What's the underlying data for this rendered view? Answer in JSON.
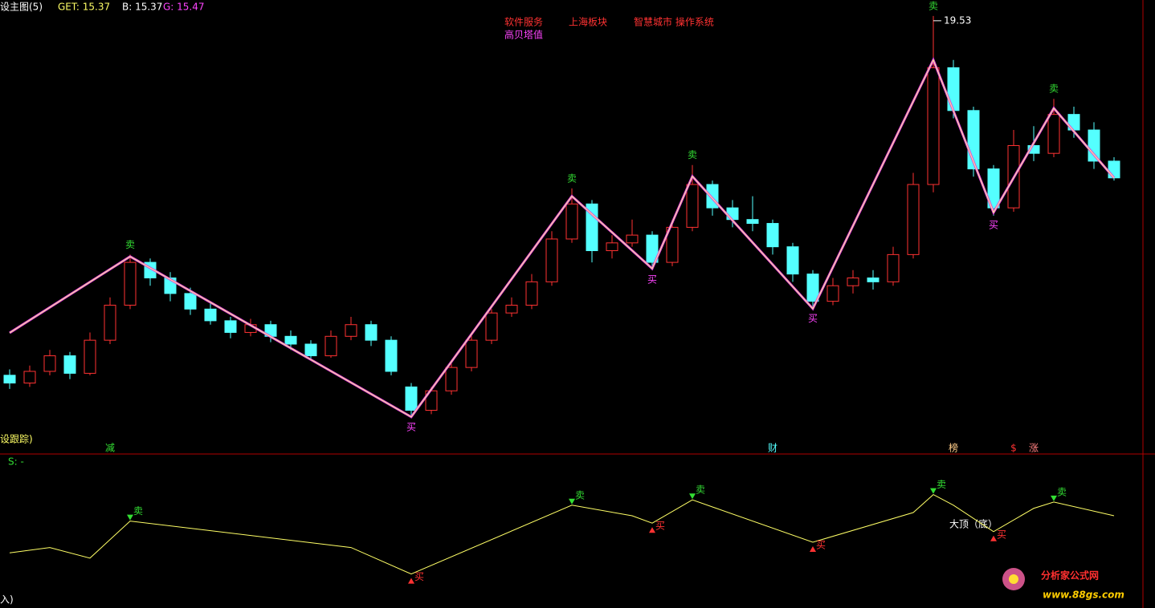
{
  "chart_data": {
    "type": "candlestick",
    "header": {
      "title": "设主图(5)",
      "get": "GET: 15.37",
      "b": "B: 15.37",
      "g": "G: 15.47"
    },
    "tags": [
      "软件服务",
      "上海板块",
      "智慧城市 操作系统",
      "高贝塔值"
    ],
    "peak_label": "19.53",
    "up_color": "#ff3232",
    "down_color": "#54ffff",
    "ylim": [
      8.71,
      19.63
    ],
    "ohlc": [
      [
        10.3,
        10.45,
        9.95,
        10.1
      ],
      [
        10.1,
        10.55,
        10.0,
        10.4
      ],
      [
        10.4,
        10.95,
        10.3,
        10.8
      ],
      [
        10.8,
        10.9,
        10.2,
        10.35
      ],
      [
        10.35,
        11.4,
        10.3,
        11.2
      ],
      [
        11.2,
        12.3,
        11.1,
        12.1
      ],
      [
        12.1,
        13.4,
        12.0,
        13.2
      ],
      [
        13.2,
        13.3,
        12.6,
        12.8
      ],
      [
        12.8,
        12.95,
        12.2,
        12.4
      ],
      [
        12.4,
        12.55,
        11.85,
        12.0
      ],
      [
        12.0,
        12.15,
        11.6,
        11.7
      ],
      [
        11.7,
        11.8,
        11.25,
        11.4
      ],
      [
        11.4,
        11.75,
        11.3,
        11.6
      ],
      [
        11.6,
        11.7,
        11.15,
        11.3
      ],
      [
        11.3,
        11.45,
        10.95,
        11.1
      ],
      [
        11.1,
        11.2,
        10.7,
        10.8
      ],
      [
        10.8,
        11.45,
        10.75,
        11.3
      ],
      [
        11.3,
        11.8,
        11.2,
        11.6
      ],
      [
        11.6,
        11.7,
        11.05,
        11.2
      ],
      [
        11.2,
        11.3,
        10.3,
        10.4
      ],
      [
        10.0,
        10.1,
        9.2,
        9.4
      ],
      [
        9.4,
        10.0,
        9.3,
        9.9
      ],
      [
        9.9,
        10.6,
        9.8,
        10.5
      ],
      [
        10.5,
        11.35,
        10.4,
        11.2
      ],
      [
        11.2,
        12.0,
        11.1,
        11.9
      ],
      [
        11.9,
        12.3,
        11.8,
        12.1
      ],
      [
        12.1,
        12.9,
        12.0,
        12.7
      ],
      [
        12.7,
        14.0,
        12.6,
        13.8
      ],
      [
        13.8,
        15.1,
        13.7,
        14.7
      ],
      [
        14.7,
        14.8,
        13.2,
        13.5
      ],
      [
        13.5,
        13.9,
        13.3,
        13.7
      ],
      [
        13.7,
        14.3,
        13.6,
        13.9
      ],
      [
        13.9,
        14.0,
        13.0,
        13.2
      ],
      [
        13.2,
        14.3,
        13.1,
        14.1
      ],
      [
        14.1,
        15.7,
        14.0,
        15.2
      ],
      [
        15.2,
        15.3,
        14.4,
        14.6
      ],
      [
        14.6,
        14.8,
        14.1,
        14.3
      ],
      [
        14.3,
        14.9,
        14.0,
        14.2
      ],
      [
        14.2,
        14.3,
        13.4,
        13.6
      ],
      [
        13.6,
        13.7,
        12.7,
        12.9
      ],
      [
        12.9,
        13.0,
        12.0,
        12.2
      ],
      [
        12.2,
        12.8,
        12.1,
        12.6
      ],
      [
        12.6,
        13.0,
        12.4,
        12.8
      ],
      [
        12.8,
        13.0,
        12.5,
        12.7
      ],
      [
        12.7,
        13.6,
        12.6,
        13.4
      ],
      [
        13.4,
        15.5,
        13.3,
        15.2
      ],
      [
        15.2,
        19.53,
        15.0,
        18.2
      ],
      [
        18.2,
        18.4,
        16.9,
        17.1
      ],
      [
        17.1,
        17.2,
        15.4,
        15.6
      ],
      [
        15.6,
        15.7,
        14.4,
        14.6
      ],
      [
        14.6,
        16.6,
        14.5,
        16.2
      ],
      [
        16.2,
        16.7,
        15.8,
        16.0
      ],
      [
        16.0,
        17.4,
        15.9,
        17.0
      ],
      [
        17.0,
        17.2,
        16.4,
        16.6
      ],
      [
        16.6,
        16.8,
        15.6,
        15.8
      ],
      [
        15.8,
        15.9,
        15.3,
        15.37
      ]
    ],
    "zigzag": {
      "color": "#e040e0",
      "x": [
        0,
        6,
        20,
        28,
        32,
        34,
        40,
        46,
        49,
        52,
        55
      ],
      "values": [
        11.39,
        13.35,
        9.23,
        14.9,
        13.04,
        15.41,
        12.01,
        18.4,
        14.48,
        17.16,
        15.37
      ]
    },
    "signals": [
      {
        "index": 6,
        "label": "卖"
      },
      {
        "index": 20,
        "label": "买"
      },
      {
        "index": 28,
        "label": "卖"
      },
      {
        "index": 32,
        "label": "买"
      },
      {
        "index": 34,
        "label": "卖"
      },
      {
        "index": 40,
        "label": "买"
      },
      {
        "index": 46,
        "label": "卖"
      },
      {
        "index": 49,
        "label": "买"
      },
      {
        "index": 52,
        "label": "卖"
      }
    ],
    "footer_left": "设跟踪)",
    "markers": [
      {
        "index": 5,
        "label": "减"
      },
      {
        "index": 38,
        "label": "财"
      },
      {
        "index": 47,
        "label": "榜"
      },
      {
        "index": 50,
        "label": "$"
      },
      {
        "index": 51,
        "label": "涨"
      }
    ],
    "indicator": {
      "name": "S: -",
      "color": "#ffff66",
      "ylim": [
        0,
        100
      ],
      "x": [
        0,
        2,
        4,
        6,
        17,
        20,
        28,
        31,
        32,
        34,
        40,
        45,
        46,
        47,
        49,
        51,
        52,
        55
      ],
      "values": [
        40,
        45,
        35,
        70,
        45,
        20,
        85,
        75,
        68,
        90,
        50,
        78,
        95,
        85,
        60,
        82,
        88,
        75
      ],
      "note": "大顶（底）",
      "footer": "入)"
    },
    "watermark": {
      "name": "分析家公式网",
      "url": "www.88gs.com"
    }
  }
}
